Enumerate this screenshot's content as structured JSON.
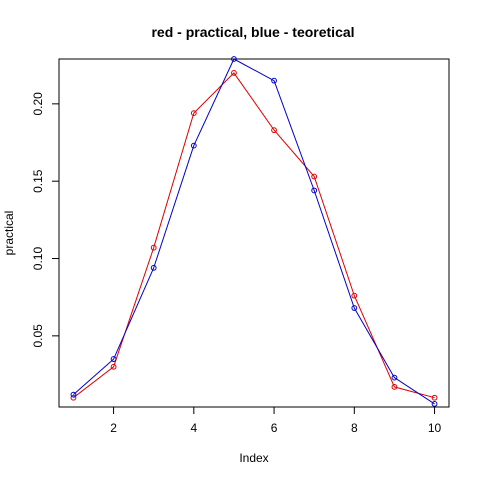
{
  "chart_data": {
    "type": "line",
    "title": "red - practical, blue - teoretical",
    "xlabel": "Index",
    "ylabel": "practical",
    "xlim": [
      0.64,
      10.36
    ],
    "ylim": [
      0.004,
      0.229
    ],
    "x_ticks": [
      2,
      4,
      6,
      8,
      10
    ],
    "y_ticks": [
      0.05,
      0.1,
      0.15,
      0.2
    ],
    "y_tick_labels": [
      "0.05",
      "0.10",
      "0.15",
      "0.20"
    ],
    "x": [
      1,
      2,
      3,
      4,
      5,
      6,
      7,
      8,
      9,
      10
    ],
    "series": [
      {
        "color": "#dd0000",
        "values": [
          0.01,
          0.03,
          0.107,
          0.194,
          0.22,
          0.183,
          0.153,
          0.076,
          0.017,
          0.01
        ]
      },
      {
        "color": "#0000cc",
        "values": [
          0.012,
          0.035,
          0.094,
          0.173,
          0.229,
          0.215,
          0.144,
          0.068,
          0.023,
          0.006
        ]
      }
    ]
  }
}
